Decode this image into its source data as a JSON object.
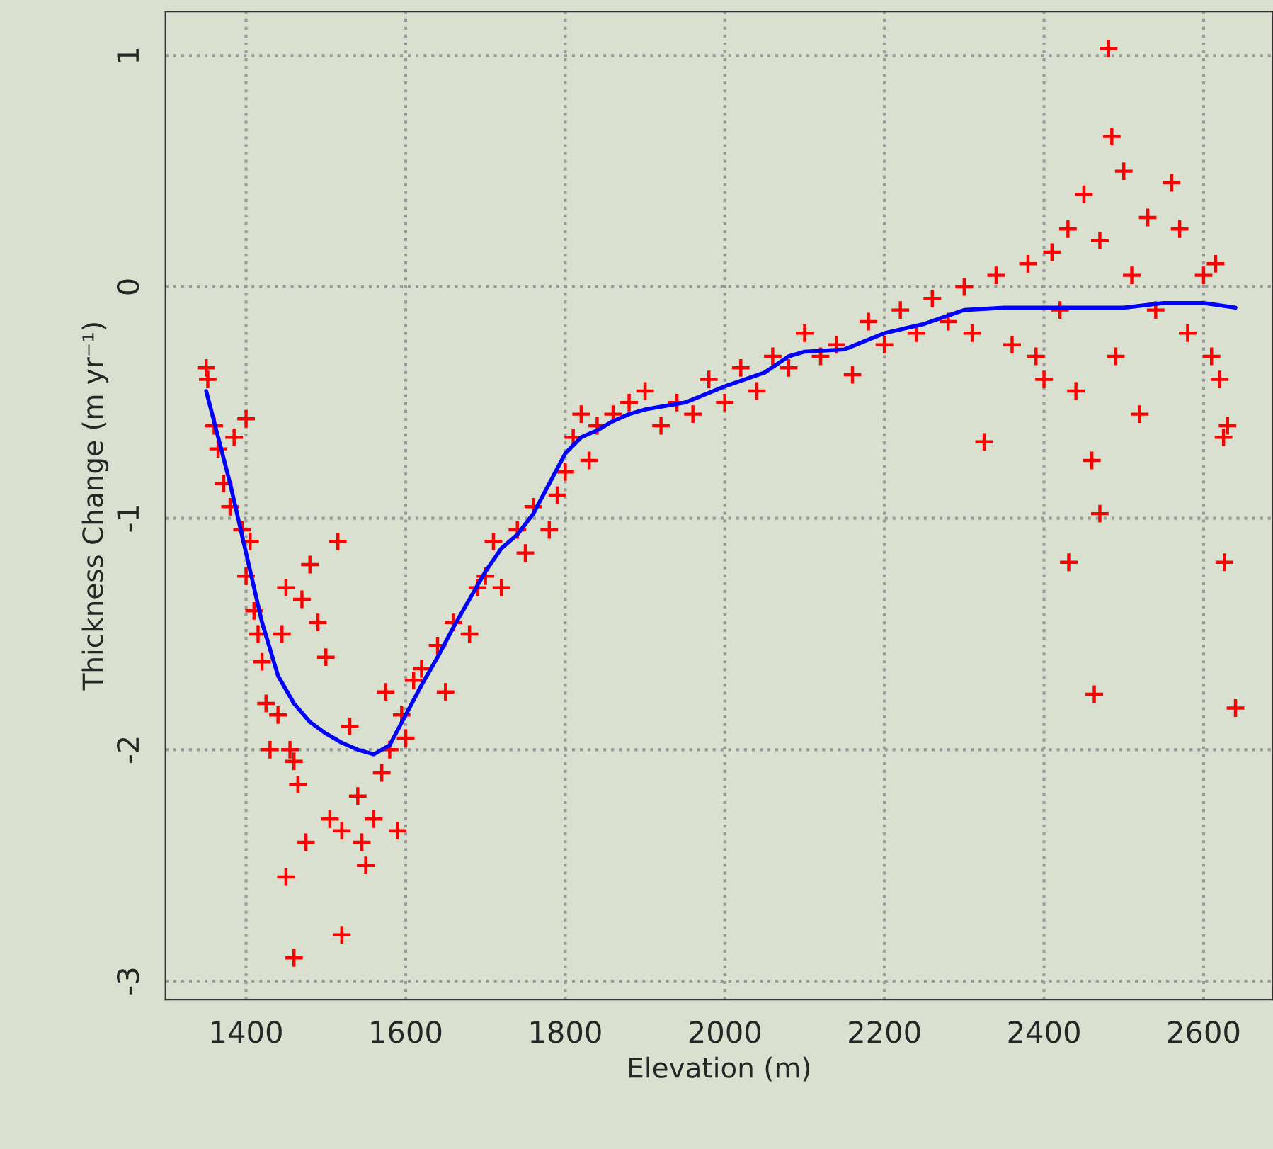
{
  "chart_data": {
    "type": "scatter",
    "xlabel": "Elevation (m)",
    "ylabel": "Thickness Change (m yr⁻¹)",
    "xlim": [
      1299,
      2687
    ],
    "ylim": [
      -3.08,
      1.19
    ],
    "xticks": [
      1400,
      1600,
      1800,
      2000,
      2200,
      2400,
      2600
    ],
    "yticks": [
      -3,
      -2,
      -1,
      0,
      1
    ],
    "grid": true,
    "marker": "cross",
    "series": [
      {
        "color": "#ff0000",
        "x": [
          1350,
          1352,
          1360,
          1365,
          1372,
          1380,
          1385,
          1400,
          1395,
          1400,
          1405,
          1410,
          1415,
          1420,
          1425,
          1430,
          1440,
          1445,
          1450,
          1455,
          1460,
          1465,
          1470,
          1480,
          1490,
          1500,
          1505,
          1515,
          1520,
          1520,
          1460,
          1450,
          1475,
          1530,
          1540,
          1545,
          1550,
          1560,
          1570,
          1575,
          1580,
          1590,
          1595,
          1600,
          1610,
          1620,
          1640,
          1650,
          1660,
          1680,
          1690,
          1700,
          1710,
          1720,
          1740,
          1750,
          1760,
          1780,
          1790,
          1800,
          1810,
          1820,
          1830,
          1840,
          1860,
          1880,
          1900,
          1920,
          1940,
          1960,
          1980,
          2000,
          2020,
          2040,
          2060,
          2080,
          2100,
          2120,
          2140,
          2160,
          2180,
          2200,
          2220,
          2240,
          2260,
          2280,
          2300,
          2310,
          2325,
          2340,
          2360,
          2380,
          2390,
          2400,
          2410,
          2420,
          2430,
          2440,
          2431,
          2450,
          2460,
          2470,
          2470,
          2463,
          2481,
          2485,
          2490,
          2500,
          2510,
          2520,
          2530,
          2540,
          2560,
          2570,
          2580,
          2600,
          2610,
          2620,
          2625,
          2630,
          2626,
          2640,
          2615
        ],
        "values": [
          -0.35,
          -0.4,
          -0.6,
          -0.7,
          -0.85,
          -0.95,
          -0.65,
          -0.57,
          -1.05,
          -1.25,
          -1.1,
          -1.4,
          -1.5,
          -1.62,
          -1.8,
          -2.0,
          -1.85,
          -1.5,
          -1.3,
          -2.0,
          -2.05,
          -2.15,
          -1.35,
          -1.2,
          -1.45,
          -1.6,
          -2.3,
          -1.1,
          -2.35,
          -2.8,
          -2.9,
          -2.55,
          -2.4,
          -1.9,
          -2.2,
          -2.4,
          -2.5,
          -2.3,
          -2.1,
          -1.75,
          -2.0,
          -2.35,
          -1.85,
          -1.95,
          -1.7,
          -1.65,
          -1.55,
          -1.75,
          -1.45,
          -1.5,
          -1.3,
          -1.25,
          -1.1,
          -1.3,
          -1.05,
          -1.15,
          -0.95,
          -1.05,
          -0.9,
          -0.8,
          -0.65,
          -0.55,
          -0.75,
          -0.6,
          -0.55,
          -0.5,
          -0.45,
          -0.6,
          -0.5,
          -0.55,
          -0.4,
          -0.5,
          -0.35,
          -0.45,
          -0.3,
          -0.35,
          -0.2,
          -0.3,
          -0.25,
          -0.38,
          -0.15,
          -0.25,
          -0.1,
          -0.2,
          -0.05,
          -0.15,
          0.0,
          -0.2,
          -0.67,
          0.05,
          -0.25,
          0.1,
          -0.3,
          -0.4,
          0.15,
          -0.1,
          0.25,
          -0.45,
          -1.19,
          0.4,
          -0.75,
          0.2,
          -0.98,
          -1.76,
          1.03,
          0.65,
          -0.3,
          0.5,
          0.05,
          -0.55,
          0.3,
          -0.1,
          0.45,
          0.25,
          -0.2,
          0.05,
          -0.3,
          -0.4,
          -0.65,
          -0.6,
          -1.19,
          -1.82,
          0.1
        ]
      },
      {
        "type": "line",
        "color": "#0000ff",
        "marker": "none",
        "x": [
          1350,
          1380,
          1400,
          1420,
          1440,
          1460,
          1480,
          1500,
          1520,
          1540,
          1560,
          1580,
          1600,
          1620,
          1640,
          1660,
          1680,
          1700,
          1720,
          1740,
          1760,
          1780,
          1800,
          1820,
          1840,
          1860,
          1880,
          1900,
          1950,
          2000,
          2050,
          2080,
          2100,
          2150,
          2200,
          2250,
          2300,
          2350,
          2400,
          2450,
          2500,
          2550,
          2600,
          2640
        ],
        "values": [
          -0.45,
          -0.85,
          -1.15,
          -1.45,
          -1.68,
          -1.8,
          -1.88,
          -1.93,
          -1.97,
          -2.0,
          -2.02,
          -1.98,
          -1.85,
          -1.72,
          -1.6,
          -1.47,
          -1.35,
          -1.23,
          -1.13,
          -1.07,
          -0.98,
          -0.85,
          -0.72,
          -0.65,
          -0.62,
          -0.58,
          -0.55,
          -0.53,
          -0.5,
          -0.43,
          -0.37,
          -0.3,
          -0.28,
          -0.27,
          -0.2,
          -0.16,
          -0.1,
          -0.09,
          -0.09,
          -0.09,
          -0.09,
          -0.07,
          -0.07,
          -0.09
        ]
      }
    ]
  }
}
